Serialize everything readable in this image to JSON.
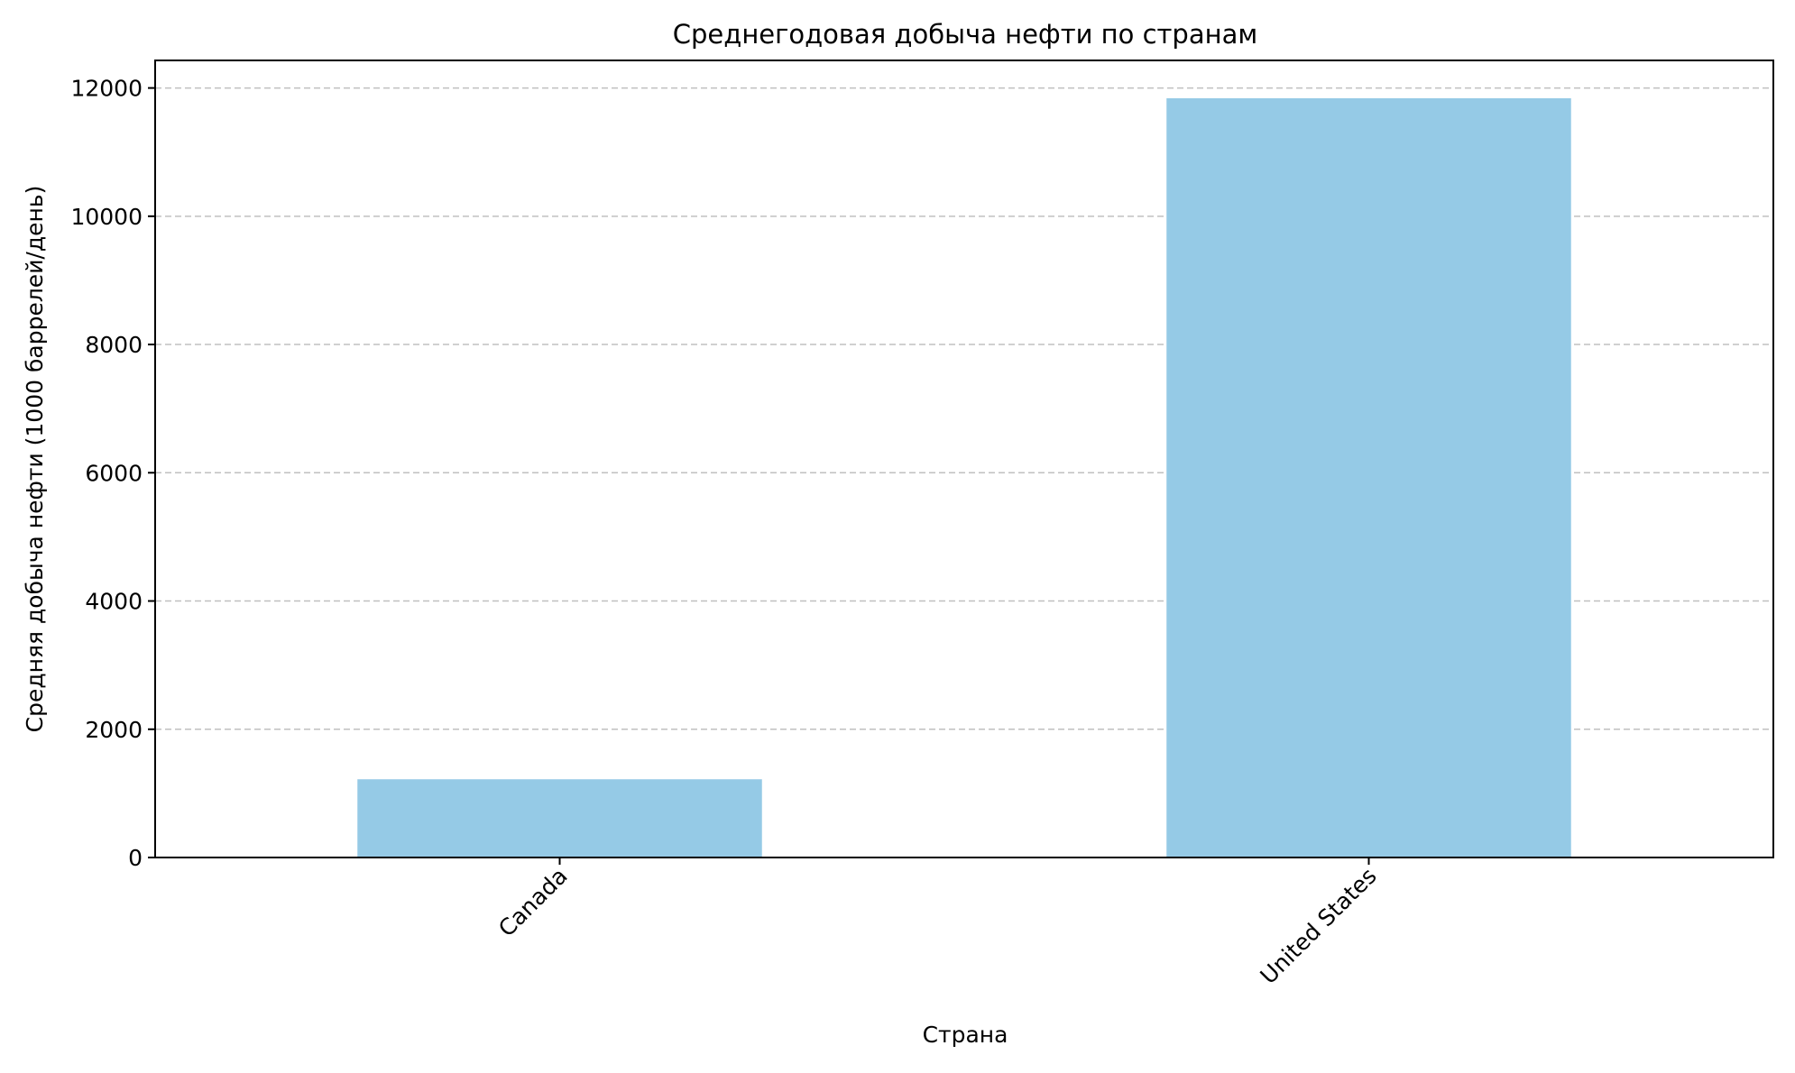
{
  "chart_data": {
    "type": "bar",
    "title": "Среднегодовая добыча нефти по странам",
    "xlabel": "Страна",
    "ylabel": "Средняя добыча нефти (1000 баррелей/день)",
    "categories": [
      "Canada",
      "United States"
    ],
    "values": [
      1220,
      11840
    ],
    "ylim": [
      0,
      12430
    ],
    "yticks": [
      0,
      2000,
      4000,
      6000,
      8000,
      10000,
      12000
    ],
    "ytick_labels": [
      "0",
      "2000",
      "4000",
      "6000",
      "8000",
      "10000",
      "12000"
    ],
    "grid": {
      "axis": "y",
      "style": "dashed",
      "color": "#c0c0c0"
    },
    "bar_color": "#95cae6",
    "legend": null
  }
}
